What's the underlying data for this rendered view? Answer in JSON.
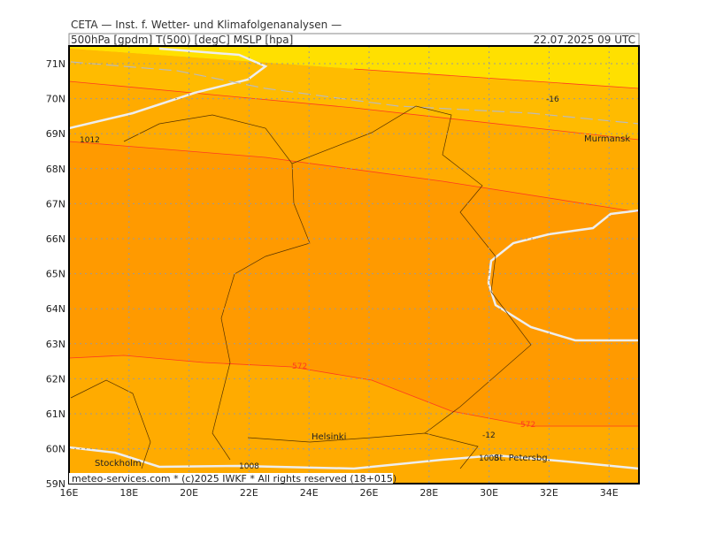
{
  "header": {
    "title": "CETA — Inst. f. Wetter- und Klimafolgenanalysen —",
    "fields": "500hPa [gpdm] T(500) [degC] MSLP [hpa]",
    "time": "22.07.2025 09 UTC"
  },
  "axes": {
    "lat_labels": [
      "71N",
      "70N",
      "69N",
      "68N",
      "67N",
      "66N",
      "65N",
      "64N",
      "63N",
      "62N",
      "61N",
      "60N",
      "59N"
    ],
    "lon_labels": [
      "16E",
      "18E",
      "20E",
      "22E",
      "24E",
      "26E",
      "28E",
      "30E",
      "32E",
      "34E"
    ]
  },
  "places": [
    "Murmansk",
    "Helsinki",
    "Stockholm",
    "St. Petersbg."
  ],
  "contour_labels": [
    "1012",
    "-16",
    "572",
    "572",
    "-12",
    "1008",
    "1008"
  ],
  "footer": "meteo-services.com * (c)2025 IWKF * All rights reserved (18+015)"
}
